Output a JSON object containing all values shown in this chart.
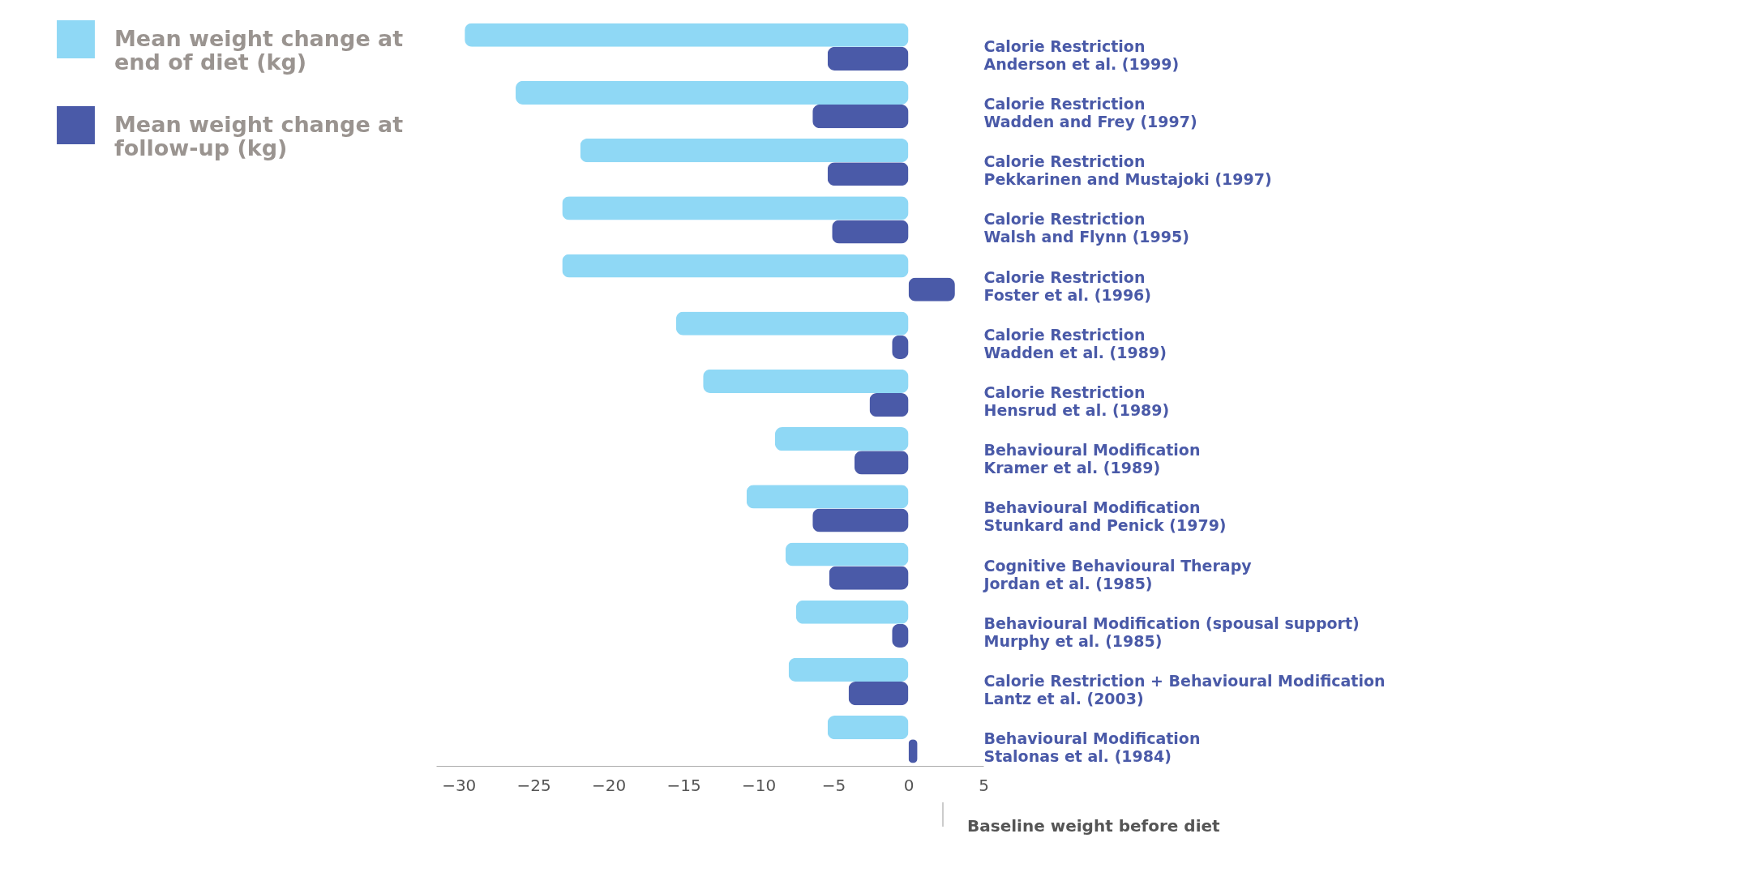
{
  "chart_data": {
    "type": "bar",
    "orientation": "horizontal",
    "categories": [
      "Calorie Restriction\nAnderson et al. (1999)",
      "Calorie Restriction\nWadden and Frey (1997)",
      "Calorie Restriction\nPekkarinen and Mustajoki (1997)",
      "Calorie Restriction\nWalsh and Flynn (1995)",
      "Calorie Restriction\nFoster et al. (1996)",
      "Calorie Restriction\nWadden et al. (1989)",
      "Calorie Restriction\nHensrud et al. (1989)",
      "Behavioural Modification\nKramer et al. (1989)",
      "Behavioural Modification\nStunkard and Penick (1979)",
      "Cognitive Behavioural Therapy\nJordan et al. (1985)",
      "Behavioural Modification (spousal support)\nMurphy et al. (1985)",
      "Calorie Restriction + Behavioural Modification\nLantz et al. (2003)",
      "Behavioural Modification\nStalonas et al. (1984)"
    ],
    "series": [
      {
        "name": "Mean weight change at end of diet (kg)",
        "color": "#8fd8f5",
        "values": [
          -29.6,
          -26.2,
          -21.9,
          -23.1,
          -23.1,
          -15.5,
          -13.7,
          -8.9,
          -10.8,
          -8.2,
          -7.5,
          -8.0,
          -5.4
        ]
      },
      {
        "name": "Mean weight change at follow-up (kg)",
        "color": "#4a5aa8",
        "values": [
          -5.4,
          -6.4,
          -5.4,
          -5.1,
          3.1,
          -1.1,
          -2.6,
          -3.6,
          -6.4,
          -5.3,
          -1.1,
          -4.0,
          0.6
        ]
      }
    ],
    "xlim": [
      -31.5,
      5
    ],
    "xticks": [
      -30,
      -25,
      -20,
      -15,
      -10,
      -5,
      0,
      5
    ],
    "legend": "left",
    "annotations": [
      "Baseline weight before diet"
    ]
  }
}
